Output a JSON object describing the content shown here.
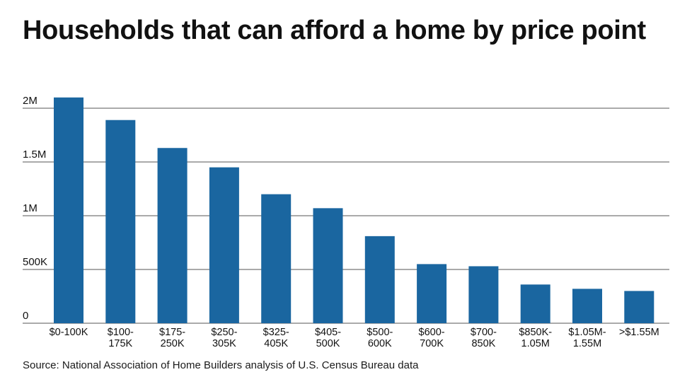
{
  "title": "Households that can afford a home by price point",
  "source": "Source: National Association of Home Builders analysis of U.S. Census Bureau data",
  "colors": {
    "bar": "#1a66a0",
    "grid": "#555555",
    "text": "#111111"
  },
  "chart_data": {
    "type": "bar",
    "categories": [
      [
        "$0-100K"
      ],
      [
        "$100-",
        "175K"
      ],
      [
        "$175-",
        "250K"
      ],
      [
        "$250-",
        "305K"
      ],
      [
        "$325-",
        "405K"
      ],
      [
        "$405-",
        "500K"
      ],
      [
        "$500-",
        "600K"
      ],
      [
        "$600-",
        "700K"
      ],
      [
        "$700-",
        "850K"
      ],
      [
        "$850K-",
        "1.05M"
      ],
      [
        "$1.05M-",
        "1.55M"
      ],
      [
        ">$1.55M"
      ]
    ],
    "values": [
      2100000,
      1890000,
      1630000,
      1450000,
      1200000,
      1070000,
      810000,
      550000,
      530000,
      360000,
      320000,
      300000
    ],
    "yticks": [
      {
        "value": 0,
        "label": "0"
      },
      {
        "value": 500000,
        "label": "500K"
      },
      {
        "value": 1000000,
        "label": "1M"
      },
      {
        "value": 1500000,
        "label": "1.5M"
      },
      {
        "value": 2000000,
        "label": "2M"
      }
    ],
    "ylim": [
      0,
      2000000
    ],
    "xlabel": "",
    "ylabel": "",
    "grid": true
  }
}
